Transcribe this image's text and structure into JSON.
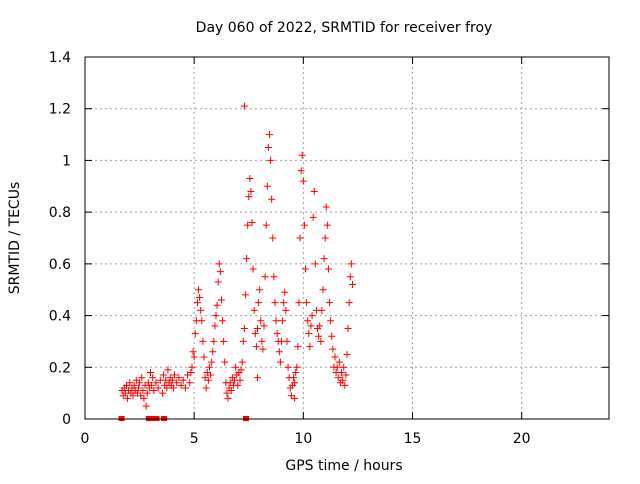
{
  "chart_data": {
    "type": "scatter",
    "title": "Day 060 of 2022, SRMTID for receiver froy",
    "xlabel": "GPS time / hours",
    "ylabel": "SRMTID / TECUs",
    "xlim": [
      0,
      24
    ],
    "ylim": [
      0,
      1.4
    ],
    "grid": true,
    "x_ticks": [
      0,
      5,
      10,
      15,
      20
    ],
    "x_tick_labels": [
      "0",
      "5",
      "10",
      "15",
      "20"
    ],
    "y_ticks": [
      0,
      0.2,
      0.4,
      0.6,
      0.8,
      1.0,
      1.2,
      1.4
    ],
    "y_tick_labels": [
      "0",
      "0.2",
      "0.4",
      "0.6",
      "0.8",
      "1",
      "1.2",
      "1.4"
    ],
    "marker": "plus",
    "series": [
      {
        "name": "SRMTID",
        "color": "#ff0000",
        "points": [
          [
            1.7,
            0.11
          ],
          [
            1.75,
            0.09
          ],
          [
            1.8,
            0.12
          ],
          [
            1.85,
            0.1
          ],
          [
            1.9,
            0.13
          ],
          [
            1.95,
            0.08
          ],
          [
            2.0,
            0.11
          ],
          [
            2.05,
            0.14
          ],
          [
            2.1,
            0.1
          ],
          [
            2.15,
            0.12
          ],
          [
            2.2,
            0.09
          ],
          [
            2.25,
            0.13
          ],
          [
            2.3,
            0.11
          ],
          [
            2.35,
            0.15
          ],
          [
            2.4,
            0.1
          ],
          [
            2.45,
            0.12
          ],
          [
            2.5,
            0.14
          ],
          [
            2.55,
            0.09
          ],
          [
            2.6,
            0.16
          ],
          [
            2.65,
            0.11
          ],
          [
            2.7,
            0.08
          ],
          [
            2.75,
            0.13
          ],
          [
            2.8,
            0.05
          ],
          [
            2.85,
            0.1
          ],
          [
            2.9,
            0.14
          ],
          [
            2.95,
            0.12
          ],
          [
            3.0,
            0.18
          ],
          [
            3.05,
            0.13
          ],
          [
            3.1,
            0.16
          ],
          [
            3.15,
            0.11
          ],
          [
            3.25,
            0.14
          ],
          [
            3.35,
            0.12
          ],
          [
            3.45,
            0.15
          ],
          [
            3.55,
            0.1
          ],
          [
            3.6,
            0.17
          ],
          [
            3.65,
            0.13
          ],
          [
            3.7,
            0.15
          ],
          [
            3.75,
            0.12
          ],
          [
            3.8,
            0.19
          ],
          [
            3.85,
            0.14
          ],
          [
            3.9,
            0.16
          ],
          [
            3.95,
            0.13
          ],
          [
            4.0,
            0.15
          ],
          [
            4.05,
            0.12
          ],
          [
            4.1,
            0.17
          ],
          [
            4.2,
            0.14
          ],
          [
            4.3,
            0.16
          ],
          [
            4.4,
            0.13
          ],
          [
            4.5,
            0.15
          ],
          [
            4.6,
            0.12
          ],
          [
            4.7,
            0.17
          ],
          [
            4.8,
            0.14
          ],
          [
            4.85,
            0.18
          ],
          [
            4.9,
            0.2
          ],
          [
            4.95,
            0.26
          ],
          [
            5.0,
            0.24
          ],
          [
            5.05,
            0.33
          ],
          [
            5.1,
            0.38
          ],
          [
            5.15,
            0.45
          ],
          [
            5.2,
            0.5
          ],
          [
            5.25,
            0.47
          ],
          [
            5.3,
            0.42
          ],
          [
            5.35,
            0.38
          ],
          [
            5.4,
            0.3
          ],
          [
            5.45,
            0.24
          ],
          [
            5.5,
            0.16
          ],
          [
            5.55,
            0.12
          ],
          [
            5.6,
            0.18
          ],
          [
            5.65,
            0.15
          ],
          [
            5.7,
            0.2
          ],
          [
            5.75,
            0.17
          ],
          [
            5.8,
            0.22
          ],
          [
            5.85,
            0.26
          ],
          [
            5.9,
            0.3
          ],
          [
            5.95,
            0.36
          ],
          [
            6.0,
            0.4
          ],
          [
            6.05,
            0.44
          ],
          [
            6.1,
            0.53
          ],
          [
            6.15,
            0.6
          ],
          [
            6.2,
            0.57
          ],
          [
            6.25,
            0.46
          ],
          [
            6.3,
            0.38
          ],
          [
            6.35,
            0.3
          ],
          [
            6.4,
            0.22
          ],
          [
            6.45,
            0.14
          ],
          [
            6.5,
            0.1
          ],
          [
            6.55,
            0.08
          ],
          [
            6.6,
            0.12
          ],
          [
            6.65,
            0.14
          ],
          [
            6.7,
            0.11
          ],
          [
            6.75,
            0.16
          ],
          [
            6.8,
            0.13
          ],
          [
            6.85,
            0.15
          ],
          [
            6.9,
            0.2
          ],
          [
            6.95,
            0.17
          ],
          [
            7.0,
            0.13
          ],
          [
            7.05,
            0.18
          ],
          [
            7.1,
            0.15
          ],
          [
            7.15,
            0.19
          ],
          [
            7.2,
            0.22
          ],
          [
            7.25,
            0.3
          ],
          [
            7.3,
            0.35
          ],
          [
            7.35,
            0.48
          ],
          [
            7.4,
            0.62
          ],
          [
            7.45,
            0.75
          ],
          [
            7.5,
            0.86
          ],
          [
            7.55,
            0.93
          ],
          [
            7.6,
            0.88
          ],
          [
            7.65,
            0.76
          ],
          [
            7.7,
            0.58
          ],
          [
            7.75,
            0.42
          ],
          [
            7.8,
            0.33
          ],
          [
            7.85,
            0.28
          ],
          [
            7.9,
            0.35
          ],
          [
            7.95,
            0.45
          ],
          [
            8.0,
            0.5
          ],
          [
            8.05,
            0.38
          ],
          [
            8.1,
            0.3
          ],
          [
            8.15,
            0.27
          ],
          [
            8.2,
            0.36
          ],
          [
            8.25,
            0.55
          ],
          [
            8.3,
            0.75
          ],
          [
            8.35,
            0.9
          ],
          [
            8.4,
            1.05
          ],
          [
            8.45,
            1.1
          ],
          [
            8.5,
            1.0
          ],
          [
            8.55,
            0.85
          ],
          [
            8.6,
            0.7
          ],
          [
            8.65,
            0.55
          ],
          [
            8.7,
            0.45
          ],
          [
            8.75,
            0.38
          ],
          [
            8.8,
            0.33
          ],
          [
            8.85,
            0.3
          ],
          [
            8.9,
            0.26
          ],
          [
            8.95,
            0.22
          ],
          [
            9.0,
            0.3
          ],
          [
            9.05,
            0.38
          ],
          [
            9.1,
            0.45
          ],
          [
            9.15,
            0.49
          ],
          [
            9.2,
            0.42
          ],
          [
            9.25,
            0.3
          ],
          [
            9.3,
            0.2
          ],
          [
            9.35,
            0.16
          ],
          [
            9.4,
            0.12
          ],
          [
            9.45,
            0.09
          ],
          [
            9.5,
            0.13
          ],
          [
            9.55,
            0.16
          ],
          [
            9.6,
            0.14
          ],
          [
            9.65,
            0.18
          ],
          [
            9.7,
            0.2
          ],
          [
            9.75,
            0.28
          ],
          [
            9.8,
            0.45
          ],
          [
            9.85,
            0.7
          ],
          [
            9.9,
            0.96
          ],
          [
            9.95,
            1.02
          ],
          [
            10.0,
            0.92
          ],
          [
            10.05,
            0.75
          ],
          [
            10.1,
            0.58
          ],
          [
            10.15,
            0.45
          ],
          [
            10.2,
            0.38
          ],
          [
            10.25,
            0.33
          ],
          [
            10.3,
            0.28
          ],
          [
            10.35,
            0.36
          ],
          [
            10.4,
            0.4
          ],
          [
            10.45,
            0.78
          ],
          [
            10.5,
            0.88
          ],
          [
            10.55,
            0.6
          ],
          [
            10.6,
            0.42
          ],
          [
            10.65,
            0.35
          ],
          [
            10.7,
            0.32
          ],
          [
            10.75,
            0.36
          ],
          [
            10.8,
            0.3
          ],
          [
            10.85,
            0.42
          ],
          [
            10.9,
            0.5
          ],
          [
            10.95,
            0.62
          ],
          [
            11.0,
            0.7
          ],
          [
            11.05,
            0.82
          ],
          [
            11.1,
            0.75
          ],
          [
            11.15,
            0.58
          ],
          [
            11.2,
            0.45
          ],
          [
            11.25,
            0.38
          ],
          [
            11.3,
            0.32
          ],
          [
            11.35,
            0.27
          ],
          [
            11.4,
            0.2
          ],
          [
            11.45,
            0.24
          ],
          [
            11.5,
            0.18
          ],
          [
            11.55,
            0.2
          ],
          [
            11.6,
            0.16
          ],
          [
            11.65,
            0.22
          ],
          [
            11.7,
            0.14
          ],
          [
            11.75,
            0.18
          ],
          [
            11.8,
            0.15
          ],
          [
            11.85,
            0.2
          ],
          [
            11.9,
            0.13
          ],
          [
            11.95,
            0.17
          ],
          [
            12.0,
            0.25
          ],
          [
            12.05,
            0.35
          ],
          [
            12.1,
            0.45
          ],
          [
            12.15,
            0.55
          ],
          [
            12.2,
            0.6
          ],
          [
            12.25,
            0.52
          ],
          [
            7.3,
            1.21
          ],
          [
            7.9,
            0.16
          ],
          [
            9.6,
            0.08
          ]
        ],
        "zero_points": [
          1.65,
          1.7,
          2.9,
          3.0,
          3.05,
          3.15,
          3.2,
          3.3,
          3.6,
          3.65,
          7.35,
          7.4
        ]
      }
    ]
  }
}
